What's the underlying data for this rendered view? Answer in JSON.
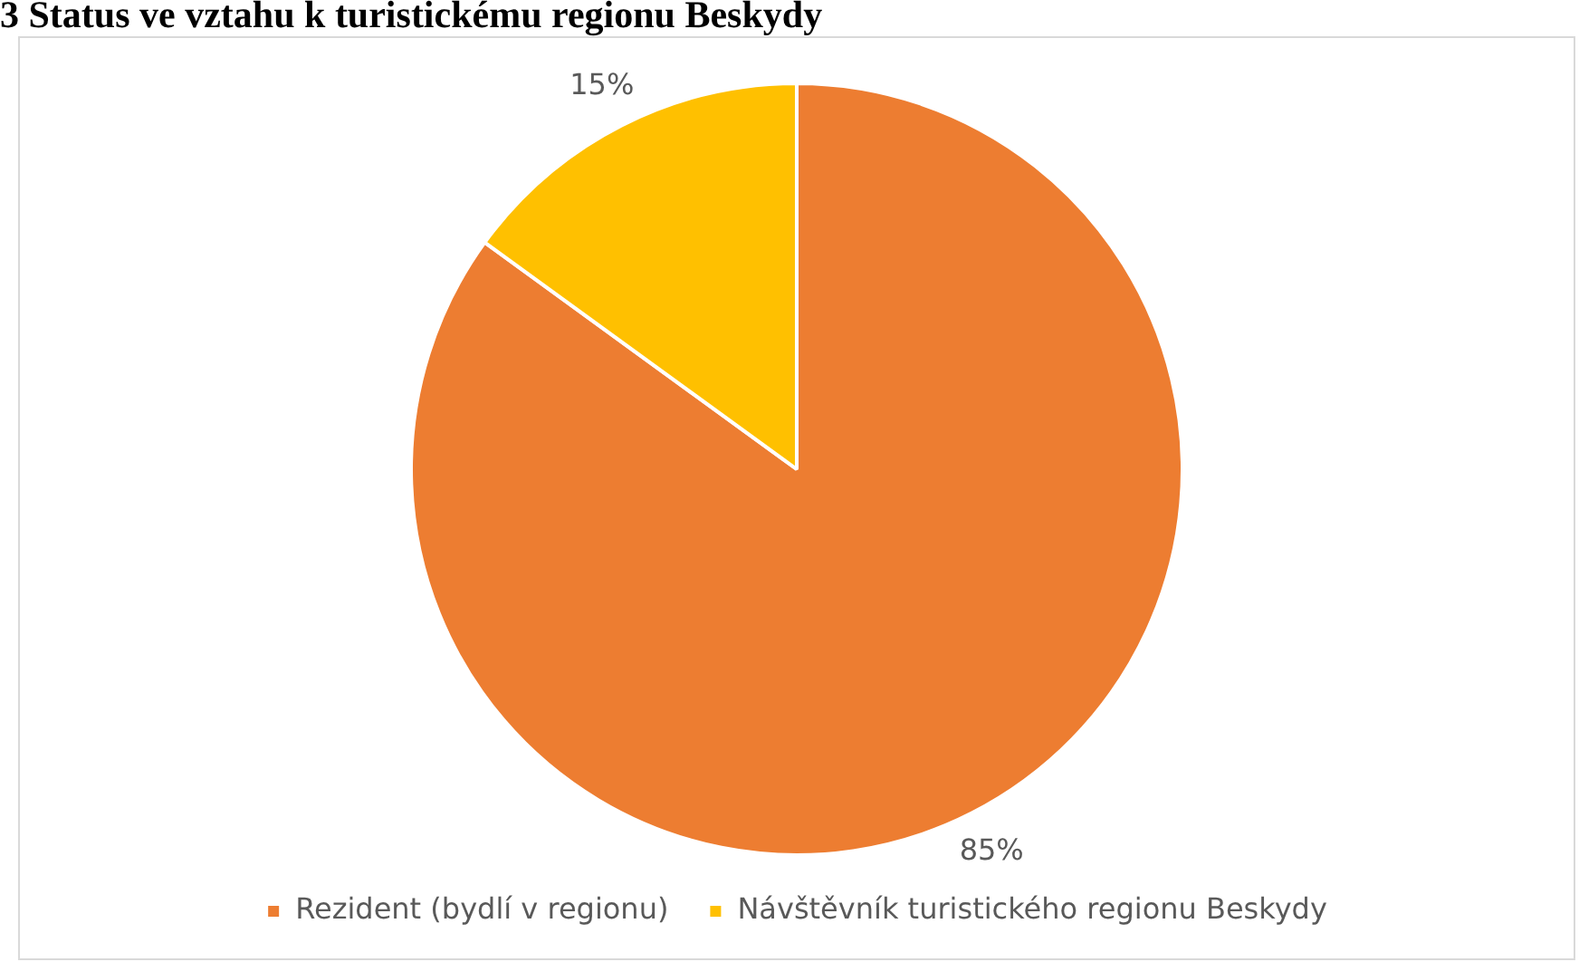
{
  "chart_data": {
    "type": "pie",
    "title": "3 Status ve vztahu k turistickému regionu Beskydy",
    "categories": [
      "Rezident (bydlí v regionu)",
      "Návštěvník turistického regionu Beskydy"
    ],
    "values": [
      85,
      15
    ],
    "colors": [
      "#ed7d31",
      "#ffc000"
    ],
    "value_labels": [
      "85%",
      "15%"
    ],
    "legend": "bottom"
  }
}
